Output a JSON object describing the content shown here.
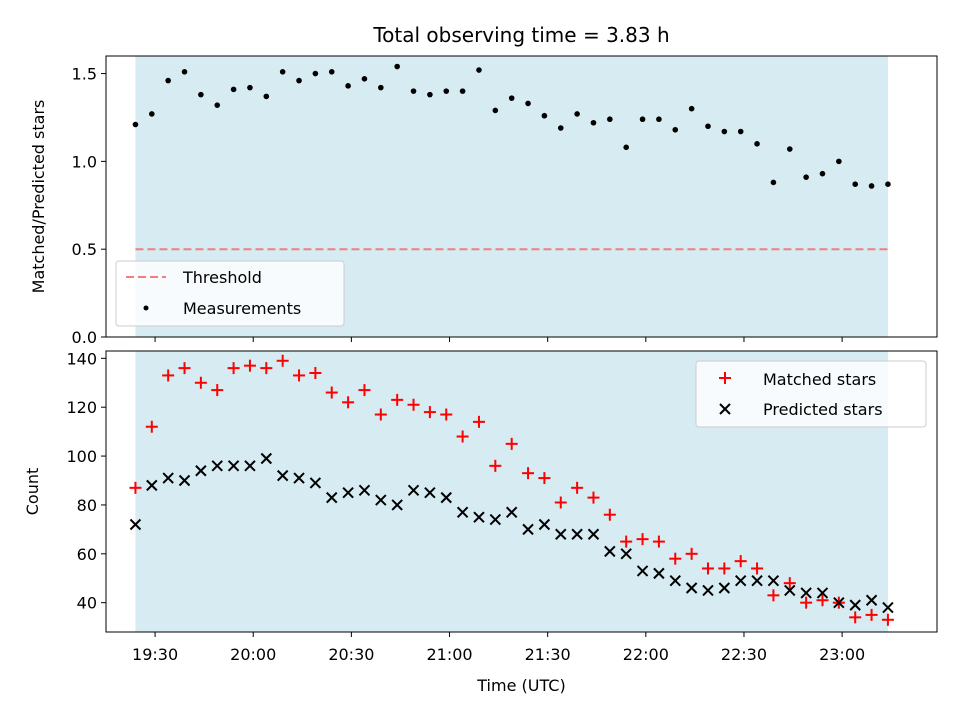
{
  "chart_data": [
    {
      "type": "scatter",
      "title": "Total observing time = 3.83 h",
      "xlabel": "",
      "ylabel": "Matched/Predicted stars",
      "xlim": [
        "19:15",
        "23:29"
      ],
      "ylim": [
        0,
        1.6
      ],
      "y_ticks": [
        0.0,
        0.5,
        1.0,
        1.5
      ],
      "y_tick_labels": [
        "0.0",
        "0.5",
        "1.0",
        "1.5"
      ],
      "observing_window": [
        "19:24",
        "23:14"
      ],
      "window_color": "#add8e6",
      "legend_position": "lower-left",
      "threshold": {
        "name": "Threshold",
        "value": 0.5,
        "color": "#f08080",
        "style": "dashed"
      },
      "series": [
        {
          "name": "Measurements",
          "color": "#000000",
          "marker": "dot",
          "x": [
            "19:24",
            "19:29",
            "19:34",
            "19:39",
            "19:44",
            "19:49",
            "19:54",
            "19:59",
            "20:04",
            "20:09",
            "20:14",
            "20:19",
            "20:24",
            "20:29",
            "20:34",
            "20:39",
            "20:44",
            "20:49",
            "20:54",
            "20:59",
            "21:04",
            "21:09",
            "21:14",
            "21:19",
            "21:24",
            "21:29",
            "21:34",
            "21:39",
            "21:44",
            "21:49",
            "21:54",
            "21:59",
            "22:04",
            "22:09",
            "22:14",
            "22:19",
            "22:24",
            "22:29",
            "22:34",
            "22:39",
            "22:44",
            "22:49",
            "22:54",
            "22:59",
            "23:04",
            "23:09",
            "23:14"
          ],
          "y": [
            1.21,
            1.27,
            1.46,
            1.51,
            1.38,
            1.32,
            1.41,
            1.42,
            1.37,
            1.51,
            1.46,
            1.5,
            1.51,
            1.43,
            1.47,
            1.42,
            1.54,
            1.4,
            1.38,
            1.4,
            1.4,
            1.52,
            1.29,
            1.36,
            1.33,
            1.26,
            1.19,
            1.27,
            1.22,
            1.24,
            1.08,
            1.24,
            1.24,
            1.18,
            1.3,
            1.2,
            1.17,
            1.17,
            1.1,
            0.88,
            1.07,
            0.91,
            0.93,
            1.0,
            0.87,
            0.86,
            0.87
          ]
        }
      ]
    },
    {
      "type": "scatter",
      "title": "",
      "xlabel": "Time (UTC)",
      "ylabel": "Count",
      "xlim": [
        "19:15",
        "23:29"
      ],
      "ylim": [
        28,
        143
      ],
      "x_ticks": [
        "19:30",
        "20:00",
        "20:30",
        "21:00",
        "21:30",
        "22:00",
        "22:30",
        "23:00"
      ],
      "y_ticks": [
        40,
        60,
        80,
        100,
        120,
        140
      ],
      "y_tick_labels": [
        "40",
        "60",
        "80",
        "100",
        "120",
        "140"
      ],
      "observing_window": [
        "19:24",
        "23:14"
      ],
      "window_color": "#add8e6",
      "legend_position": "top-right",
      "series": [
        {
          "name": "Matched stars",
          "color": "#ff0000",
          "marker": "plus",
          "x": [
            "19:24",
            "19:29",
            "19:34",
            "19:39",
            "19:44",
            "19:49",
            "19:54",
            "19:59",
            "20:04",
            "20:09",
            "20:14",
            "20:19",
            "20:24",
            "20:29",
            "20:34",
            "20:39",
            "20:44",
            "20:49",
            "20:54",
            "20:59",
            "21:04",
            "21:09",
            "21:14",
            "21:19",
            "21:24",
            "21:29",
            "21:34",
            "21:39",
            "21:44",
            "21:49",
            "21:54",
            "21:59",
            "22:04",
            "22:09",
            "22:14",
            "22:19",
            "22:24",
            "22:29",
            "22:34",
            "22:39",
            "22:44",
            "22:49",
            "22:54",
            "22:59",
            "23:04",
            "23:09",
            "23:14"
          ],
          "y": [
            87,
            112,
            133,
            136,
            130,
            127,
            136,
            137,
            136,
            139,
            133,
            134,
            126,
            122,
            127,
            117,
            123,
            121,
            118,
            117,
            108,
            114,
            96,
            105,
            93,
            91,
            81,
            87,
            83,
            76,
            65,
            66,
            65,
            58,
            60,
            54,
            54,
            57,
            54,
            43,
            48,
            40,
            41,
            40,
            34,
            35,
            33
          ]
        },
        {
          "name": "Predicted stars",
          "color": "#000000",
          "marker": "x",
          "x": [
            "19:24",
            "19:29",
            "19:34",
            "19:39",
            "19:44",
            "19:49",
            "19:54",
            "19:59",
            "20:04",
            "20:09",
            "20:14",
            "20:19",
            "20:24",
            "20:29",
            "20:34",
            "20:39",
            "20:44",
            "20:49",
            "20:54",
            "20:59",
            "21:04",
            "21:09",
            "21:14",
            "21:19",
            "21:24",
            "21:29",
            "21:34",
            "21:39",
            "21:44",
            "21:49",
            "21:54",
            "21:59",
            "22:04",
            "22:09",
            "22:14",
            "22:19",
            "22:24",
            "22:29",
            "22:34",
            "22:39",
            "22:44",
            "22:49",
            "22:54",
            "22:59",
            "23:04",
            "23:09",
            "23:14"
          ],
          "y": [
            72,
            88,
            91,
            90,
            94,
            96,
            96,
            96,
            99,
            92,
            91,
            89,
            83,
            85,
            86,
            82,
            80,
            86,
            85,
            83,
            77,
            75,
            74,
            77,
            70,
            72,
            68,
            68,
            68,
            61,
            60,
            53,
            52,
            49,
            46,
            45,
            46,
            49,
            49,
            49,
            45,
            44,
            44,
            40,
            39,
            41,
            38
          ]
        }
      ]
    }
  ]
}
